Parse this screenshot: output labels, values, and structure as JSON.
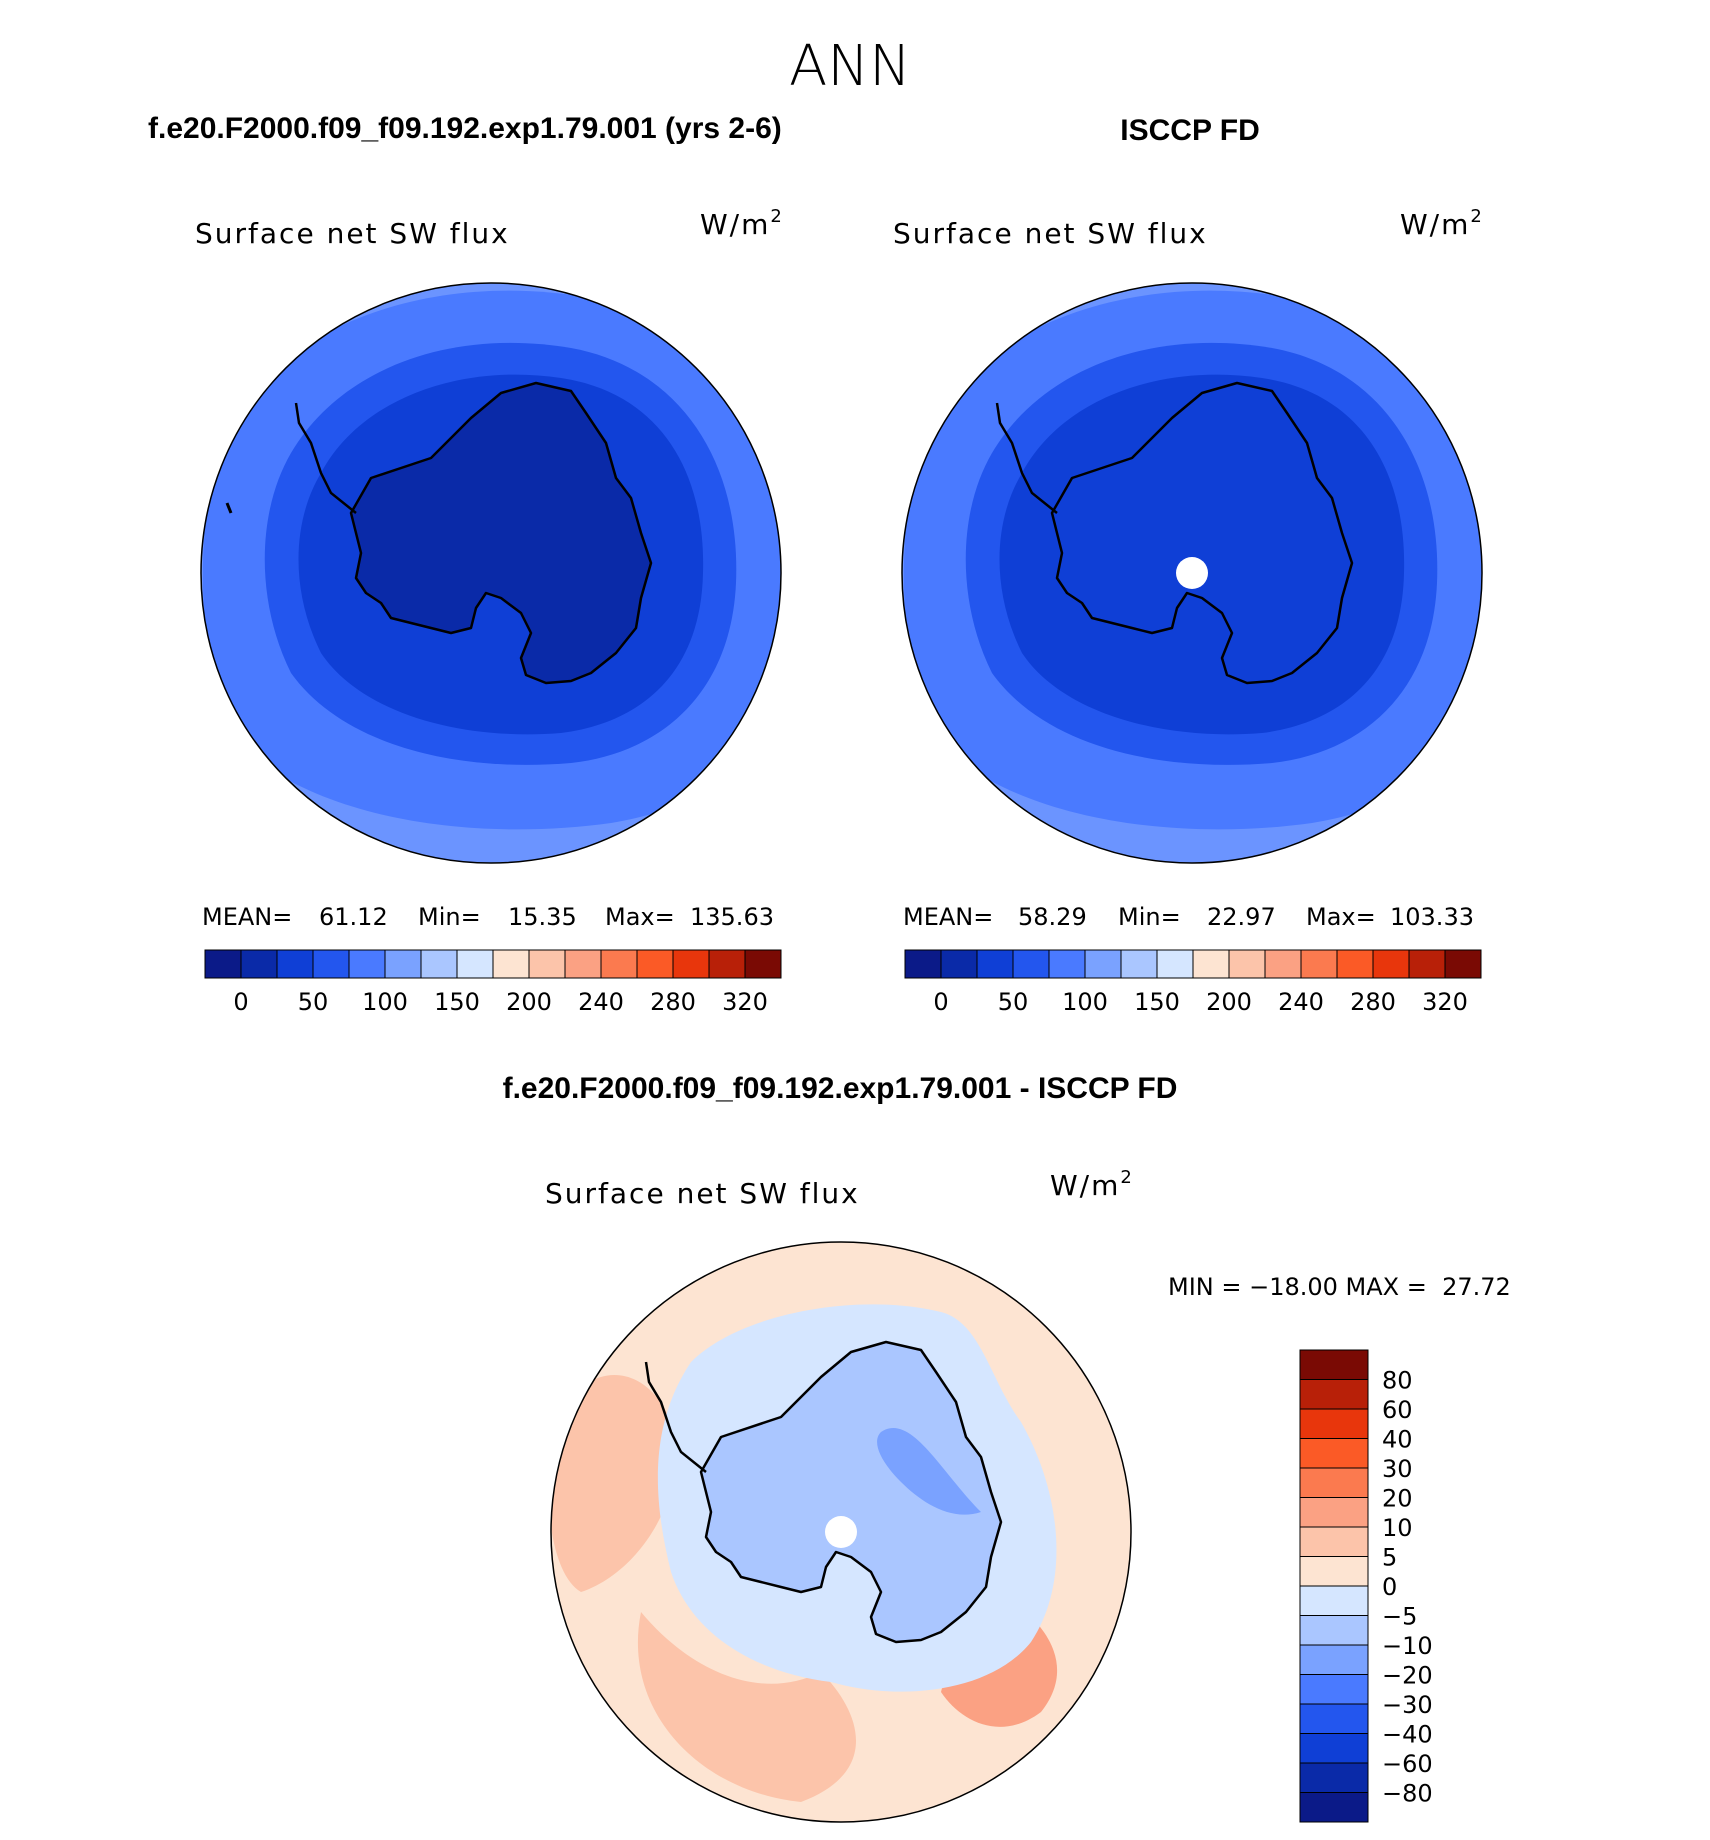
{
  "chart_data": [
    {
      "type": "heatmap",
      "projection": "south-polar-stereographic",
      "season_title": "ANN",
      "case_title": "f.e20.F2000.f09_f09.192.exp1.79.001 (yrs 2-6)",
      "variable": "Surface net SW flux",
      "units": "W/m",
      "units_exp": "2",
      "stats": {
        "mean_label": "MEAN=",
        "mean": "61.12",
        "min_label": "Min=",
        "min": "15.35",
        "max_label": "Max=",
        "max": "135.63"
      },
      "colorbar": {
        "orientation": "horizontal",
        "tick_labels": [
          "0",
          "50",
          "100",
          "150",
          "200",
          "240",
          "280",
          "320"
        ],
        "colors": [
          "#0b1a88",
          "#0a2aa8",
          "#0f3fd6",
          "#2356ee",
          "#4a7aff",
          "#7aa2ff",
          "#aac6ff",
          "#d5e6ff",
          "#fde4d2",
          "#fcc4aa",
          "#fba183",
          "#fb7a4f",
          "#fb5a26",
          "#e8360c",
          "#b82008",
          "#7a0a04"
        ]
      },
      "fill_levels": {
        "outer_ring": "#6b94ff",
        "ocean": "#4a7aff",
        "inner_ocean": "#2356ee",
        "coast_band": "#0f3fd6",
        "ice": "#0a2aa8"
      }
    },
    {
      "type": "heatmap",
      "projection": "south-polar-stereographic",
      "case_title": "ISCCP FD",
      "variable": "Surface net SW flux",
      "units": "W/m",
      "units_exp": "2",
      "stats": {
        "mean_label": "MEAN=",
        "mean": "58.29",
        "min_label": "Min=",
        "min": "22.97",
        "max_label": "Max=",
        "max": "103.33"
      },
      "colorbar": {
        "orientation": "horizontal",
        "tick_labels": [
          "0",
          "50",
          "100",
          "150",
          "200",
          "240",
          "280",
          "320"
        ],
        "colors": [
          "#0b1a88",
          "#0a2aa8",
          "#0f3fd6",
          "#2356ee",
          "#4a7aff",
          "#7aa2ff",
          "#aac6ff",
          "#d5e6ff",
          "#fde4d2",
          "#fcc4aa",
          "#fba183",
          "#fb7a4f",
          "#fb5a26",
          "#e8360c",
          "#b82008",
          "#7a0a04"
        ]
      },
      "fill_levels": {
        "outer_ring": "#6b94ff",
        "ocean": "#4a7aff",
        "inner_ocean": "#2356ee",
        "coast_band": "#0f3fd6",
        "ice": "#0f3fd6"
      }
    },
    {
      "type": "heatmap",
      "projection": "south-polar-stereographic",
      "case_title": "f.e20.F2000.f09_f09.192.exp1.79.001 - ISCCP FD",
      "variable": "Surface net SW flux",
      "units": "W/m",
      "units_exp": "2",
      "stats_text": "MIN = −18.00 MAX =  27.72",
      "colorbar": {
        "orientation": "vertical",
        "tick_labels": [
          "80",
          "60",
          "40",
          "30",
          "20",
          "10",
          "5",
          "0",
          "−5",
          "−10",
          "−20",
          "−30",
          "−40",
          "−60",
          "−80"
        ],
        "colors_top_to_bottom": [
          "#7a0a04",
          "#b82008",
          "#e8360c",
          "#fb5a26",
          "#fb7a4f",
          "#fba183",
          "#fcc4aa",
          "#fde4d2",
          "#d5e6ff",
          "#aac6ff",
          "#7aa2ff",
          "#4a7aff",
          "#2356ee",
          "#0f3fd6",
          "#0a2aa8",
          "#0b1a88"
        ]
      },
      "fill_levels": {
        "ocean": "#fde4d2",
        "warm_patch": "#fcc4aa",
        "hot_patch": "#fba183",
        "ice": "#aac6ff",
        "cool_patch": "#d5e6ff",
        "cold_patch": "#7aa2ff"
      }
    }
  ]
}
